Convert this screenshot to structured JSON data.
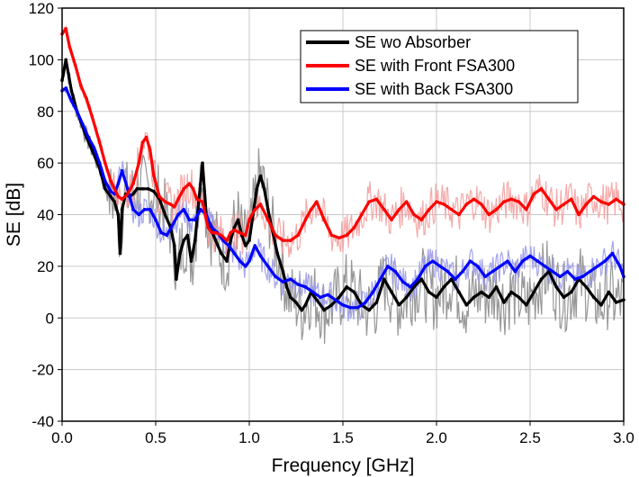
{
  "chart_data": {
    "type": "line",
    "title": "",
    "xlabel": "Frequency [GHz]",
    "ylabel": "SE [dB]",
    "xlim": [
      0.0,
      3.0
    ],
    "ylim": [
      -40,
      120
    ],
    "xticks": [
      0.0,
      0.5,
      1.0,
      1.5,
      2.0,
      2.5,
      3.0
    ],
    "xtick_labels": [
      "0.0",
      "0.5",
      "1.0",
      "1.5",
      "2.0",
      "2.5",
      "3.0"
    ],
    "yticks": [
      -40,
      -20,
      0,
      20,
      40,
      60,
      80,
      100,
      120
    ],
    "ytick_labels": [
      "-40",
      "-20",
      "0",
      "20",
      "40",
      "60",
      "80",
      "100",
      "120"
    ],
    "grid": true,
    "legend_position": "top-right",
    "series": [
      {
        "name": "SE wo Absorber",
        "color": "#000000",
        "raw_color": "#8c8c8c",
        "x": [
          0.0,
          0.02,
          0.05,
          0.08,
          0.1,
          0.13,
          0.16,
          0.2,
          0.23,
          0.26,
          0.28,
          0.3,
          0.31,
          0.32,
          0.34,
          0.36,
          0.38,
          0.4,
          0.43,
          0.46,
          0.49,
          0.52,
          0.55,
          0.58,
          0.6,
          0.61,
          0.63,
          0.65,
          0.67,
          0.69,
          0.71,
          0.73,
          0.75,
          0.77,
          0.79,
          0.82,
          0.85,
          0.88,
          0.9,
          0.92,
          0.94,
          0.96,
          0.98,
          1.0,
          1.02,
          1.04,
          1.06,
          1.08,
          1.1,
          1.12,
          1.15,
          1.18,
          1.2,
          1.22,
          1.25,
          1.28,
          1.3,
          1.33,
          1.36,
          1.4,
          1.44,
          1.48,
          1.52,
          1.56,
          1.6,
          1.64,
          1.68,
          1.72,
          1.76,
          1.8,
          1.84,
          1.88,
          1.92,
          1.96,
          2.0,
          2.04,
          2.08,
          2.12,
          2.16,
          2.2,
          2.24,
          2.28,
          2.32,
          2.36,
          2.4,
          2.44,
          2.48,
          2.52,
          2.56,
          2.6,
          2.64,
          2.68,
          2.72,
          2.76,
          2.8,
          2.84,
          2.88,
          2.92,
          2.96,
          3.0
        ],
        "values": [
          92,
          100,
          88,
          80,
          76,
          70,
          65,
          58,
          50,
          47,
          45,
          40,
          25,
          42,
          48,
          47,
          48,
          50,
          50,
          50,
          49,
          46,
          40,
          35,
          28,
          15,
          25,
          30,
          32,
          22,
          30,
          45,
          60,
          40,
          35,
          30,
          25,
          22,
          30,
          35,
          38,
          32,
          28,
          30,
          40,
          50,
          55,
          50,
          42,
          35,
          25,
          18,
          12,
          8,
          6,
          3,
          5,
          10,
          7,
          3,
          5,
          8,
          12,
          10,
          5,
          3,
          6,
          15,
          10,
          5,
          8,
          12,
          15,
          10,
          8,
          12,
          15,
          10,
          5,
          8,
          10,
          8,
          12,
          6,
          10,
          8,
          5,
          10,
          15,
          18,
          12,
          8,
          10,
          15,
          12,
          8,
          5,
          10,
          6,
          7
        ]
      },
      {
        "name": "SE with Front FSA300",
        "color": "#ff0000",
        "raw_color": "#f4a0a0",
        "x": [
          0.0,
          0.02,
          0.04,
          0.07,
          0.1,
          0.13,
          0.16,
          0.2,
          0.23,
          0.26,
          0.28,
          0.3,
          0.32,
          0.35,
          0.38,
          0.41,
          0.43,
          0.45,
          0.47,
          0.49,
          0.52,
          0.55,
          0.58,
          0.6,
          0.62,
          0.65,
          0.68,
          0.7,
          0.72,
          0.75,
          0.78,
          0.8,
          0.82,
          0.85,
          0.88,
          0.9,
          0.92,
          0.95,
          0.98,
          1.0,
          1.03,
          1.06,
          1.1,
          1.14,
          1.18,
          1.22,
          1.26,
          1.3,
          1.33,
          1.36,
          1.4,
          1.44,
          1.48,
          1.52,
          1.56,
          1.6,
          1.64,
          1.68,
          1.72,
          1.76,
          1.8,
          1.84,
          1.88,
          1.92,
          1.96,
          2.0,
          2.04,
          2.08,
          2.12,
          2.16,
          2.2,
          2.24,
          2.28,
          2.32,
          2.36,
          2.4,
          2.44,
          2.48,
          2.52,
          2.56,
          2.6,
          2.64,
          2.68,
          2.72,
          2.76,
          2.8,
          2.84,
          2.88,
          2.92,
          2.96,
          3.0
        ],
        "values": [
          110,
          112,
          105,
          98,
          90,
          85,
          78,
          68,
          60,
          53,
          50,
          47,
          46,
          48,
          52,
          60,
          68,
          70,
          65,
          55,
          47,
          45,
          44,
          43,
          46,
          50,
          52,
          50,
          46,
          45,
          35,
          33,
          33,
          32,
          30,
          33,
          34,
          33,
          32,
          38,
          42,
          44,
          38,
          32,
          30,
          30,
          32,
          38,
          42,
          45,
          38,
          32,
          31,
          32,
          35,
          40,
          45,
          46,
          42,
          38,
          42,
          45,
          40,
          38,
          42,
          45,
          44,
          42,
          40,
          44,
          46,
          44,
          40,
          42,
          45,
          46,
          45,
          42,
          48,
          50,
          46,
          42,
          44,
          46,
          40,
          44,
          47,
          45,
          44,
          46,
          44
        ]
      },
      {
        "name": "SE with Back FSA300",
        "color": "#0000ff",
        "raw_color": "#9a9ae8",
        "x": [
          0.0,
          0.02,
          0.05,
          0.08,
          0.11,
          0.14,
          0.17,
          0.2,
          0.23,
          0.26,
          0.28,
          0.3,
          0.32,
          0.35,
          0.38,
          0.41,
          0.44,
          0.47,
          0.5,
          0.53,
          0.56,
          0.59,
          0.62,
          0.65,
          0.68,
          0.71,
          0.74,
          0.77,
          0.8,
          0.83,
          0.86,
          0.89,
          0.92,
          0.95,
          0.98,
          1.0,
          1.03,
          1.06,
          1.1,
          1.14,
          1.18,
          1.22,
          1.26,
          1.3,
          1.34,
          1.38,
          1.42,
          1.46,
          1.5,
          1.54,
          1.58,
          1.62,
          1.66,
          1.7,
          1.74,
          1.78,
          1.82,
          1.86,
          1.9,
          1.94,
          1.98,
          2.02,
          2.06,
          2.1,
          2.14,
          2.18,
          2.22,
          2.26,
          2.3,
          2.34,
          2.38,
          2.42,
          2.46,
          2.5,
          2.54,
          2.58,
          2.62,
          2.66,
          2.7,
          2.74,
          2.78,
          2.82,
          2.86,
          2.9,
          2.94,
          2.98,
          3.0
        ],
        "values": [
          88,
          89,
          84,
          80,
          75,
          70,
          66,
          60,
          53,
          49,
          48,
          52,
          57,
          50,
          42,
          40,
          42,
          42,
          38,
          33,
          32,
          36,
          40,
          42,
          38,
          38,
          42,
          40,
          35,
          33,
          30,
          28,
          25,
          22,
          20,
          22,
          28,
          24,
          20,
          16,
          14,
          15,
          13,
          12,
          10,
          8,
          9,
          7,
          5,
          4,
          4,
          6,
          10,
          15,
          20,
          18,
          14,
          12,
          15,
          20,
          22,
          20,
          18,
          15,
          18,
          22,
          20,
          16,
          18,
          20,
          22,
          18,
          22,
          24,
          22,
          20,
          18,
          16,
          18,
          15,
          16,
          18,
          20,
          22,
          25,
          20,
          16
        ]
      }
    ]
  }
}
